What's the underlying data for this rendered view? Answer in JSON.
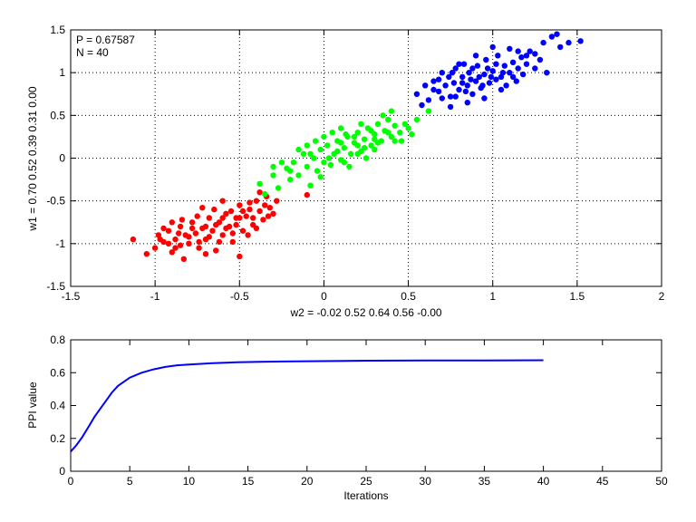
{
  "chart_data": [
    {
      "type": "scatter",
      "annotations": [
        "P = 0.67587",
        "N = 40"
      ],
      "xlabel": "w2 = -0.02  0.52  0.64  0.56  -0.00",
      "ylabel": "w1 = 0.70  0.52  0.39  0.31  0.00",
      "xlim": [
        -1.5,
        2
      ],
      "ylim": [
        -1.5,
        1.5
      ],
      "xticks": [
        -1.5,
        -1,
        -0.5,
        0,
        0.5,
        1,
        1.5,
        2
      ],
      "yticks": [
        -1.5,
        -1,
        -0.5,
        0,
        0.5,
        1,
        1.5
      ],
      "xtick_labels": [
        "-1.5",
        "-1",
        "-0.5",
        "0",
        "0.5",
        "1",
        "1.5",
        "2"
      ],
      "ytick_labels": [
        "-1.5",
        "-1",
        "-0.5",
        "0",
        "0.5",
        "1",
        "1.5"
      ],
      "grid": true,
      "series": [
        {
          "color": "#ff0000",
          "points": [
            [
              -1.13,
              -0.95
            ],
            [
              -1.05,
              -1.12
            ],
            [
              -1.0,
              -1.05
            ],
            [
              -0.98,
              -0.9
            ],
            [
              -0.95,
              -0.98
            ],
            [
              -0.92,
              -0.85
            ],
            [
              -0.9,
              -1.1
            ],
            [
              -0.88,
              -0.95
            ],
            [
              -0.85,
              -0.8
            ],
            [
              -0.83,
              -1.18
            ],
            [
              -0.82,
              -0.9
            ],
            [
              -0.8,
              -1.0
            ],
            [
              -0.78,
              -0.75
            ],
            [
              -0.76,
              -0.88
            ],
            [
              -0.74,
              -1.05
            ],
            [
              -0.72,
              -0.82
            ],
            [
              -0.7,
              -0.95
            ],
            [
              -0.68,
              -0.7
            ],
            [
              -0.66,
              -0.85
            ],
            [
              -0.64,
              -1.08
            ],
            [
              -0.62,
              -0.75
            ],
            [
              -0.6,
              -0.9
            ],
            [
              -0.58,
              -0.65
            ],
            [
              -0.56,
              -0.8
            ],
            [
              -0.54,
              -0.98
            ],
            [
              -0.52,
              -0.7
            ],
            [
              -0.5,
              -0.55
            ],
            [
              -0.48,
              -0.85
            ],
            [
              -0.46,
              -0.68
            ],
            [
              -0.44,
              -0.6
            ],
            [
              -0.42,
              -0.78
            ],
            [
              -0.4,
              -0.5
            ],
            [
              -0.38,
              -0.62
            ],
            [
              -0.36,
              -0.72
            ],
            [
              -0.34,
              -0.45
            ],
            [
              -0.32,
              -0.58
            ],
            [
              -0.3,
              -0.65
            ],
            [
              -0.28,
              -0.5
            ],
            [
              -0.6,
              -0.5
            ],
            [
              -0.55,
              -0.62
            ],
            [
              -0.75,
              -0.68
            ],
            [
              -0.85,
              -1.02
            ],
            [
              -0.95,
              -0.82
            ],
            [
              -0.7,
              -1.12
            ],
            [
              -0.5,
              -1.15
            ],
            [
              -0.45,
              -0.9
            ],
            [
              -0.65,
              -0.6
            ],
            [
              -0.8,
              -0.92
            ],
            [
              -0.9,
              -0.75
            ],
            [
              -0.72,
              -0.58
            ],
            [
              -0.62,
              -0.98
            ],
            [
              -0.58,
              -0.82
            ],
            [
              -0.42,
              -0.7
            ],
            [
              -0.35,
              -0.55
            ],
            [
              -0.88,
              -1.05
            ],
            [
              -0.78,
              -0.82
            ],
            [
              -0.68,
              -0.92
            ],
            [
              -0.52,
              -0.78
            ],
            [
              -0.48,
              -0.62
            ],
            [
              -0.38,
              -0.4
            ],
            [
              -0.1,
              -0.43
            ],
            [
              -0.97,
              -0.95
            ],
            [
              -0.84,
              -0.72
            ],
            [
              -0.74,
              -0.98
            ],
            [
              -0.64,
              -0.78
            ],
            [
              -0.54,
              -0.88
            ],
            [
              -0.44,
              -0.52
            ],
            [
              -0.4,
              -0.82
            ],
            [
              -0.33,
              -0.68
            ],
            [
              -0.92,
              -1.0
            ],
            [
              -0.86,
              -0.88
            ],
            [
              -0.7,
              -0.8
            ],
            [
              -0.6,
              -0.7
            ],
            [
              -0.5,
              -0.7
            ]
          ]
        },
        {
          "color": "#00ff00",
          "points": [
            [
              -0.38,
              -0.3
            ],
            [
              -0.35,
              -0.42
            ],
            [
              -0.3,
              -0.2
            ],
            [
              -0.27,
              -0.35
            ],
            [
              -0.22,
              -0.12
            ],
            [
              -0.2,
              -0.25
            ],
            [
              -0.18,
              -0.05
            ],
            [
              -0.15,
              -0.2
            ],
            [
              -0.12,
              0.05
            ],
            [
              -0.1,
              -0.1
            ],
            [
              -0.08,
              -0.32
            ],
            [
              -0.06,
              0.0
            ],
            [
              -0.04,
              -0.15
            ],
            [
              -0.02,
              0.1
            ],
            [
              0.0,
              -0.05
            ],
            [
              0.02,
              0.15
            ],
            [
              0.04,
              -0.08
            ],
            [
              0.06,
              0.05
            ],
            [
              0.08,
              0.2
            ],
            [
              0.1,
              -0.02
            ],
            [
              0.12,
              0.12
            ],
            [
              0.14,
              0.25
            ],
            [
              0.16,
              0.05
            ],
            [
              0.18,
              0.18
            ],
            [
              0.2,
              0.3
            ],
            [
              0.22,
              0.08
            ],
            [
              0.24,
              0.22
            ],
            [
              0.26,
              0.35
            ],
            [
              0.28,
              0.15
            ],
            [
              0.3,
              0.28
            ],
            [
              0.32,
              0.4
            ],
            [
              0.34,
              0.2
            ],
            [
              0.36,
              0.32
            ],
            [
              0.38,
              0.45
            ],
            [
              0.4,
              0.25
            ],
            [
              0.42,
              0.38
            ],
            [
              0.45,
              0.3
            ],
            [
              0.48,
              0.4
            ],
            [
              0.5,
              0.35
            ],
            [
              0.55,
              0.45
            ],
            [
              0.62,
              0.55
            ],
            [
              -0.05,
              0.2
            ],
            [
              0.05,
              0.3
            ],
            [
              0.15,
              -0.1
            ],
            [
              0.25,
              0.0
            ],
            [
              0.35,
              0.5
            ],
            [
              -0.15,
              0.1
            ],
            [
              -0.25,
              -0.05
            ],
            [
              0.1,
              0.35
            ],
            [
              0.2,
              0.05
            ],
            [
              0.3,
              0.1
            ],
            [
              0.0,
              0.25
            ],
            [
              -0.1,
              0.15
            ],
            [
              0.12,
              -0.05
            ],
            [
              0.22,
              0.4
            ],
            [
              0.32,
              0.18
            ],
            [
              0.42,
              0.2
            ],
            [
              -0.02,
              -0.22
            ],
            [
              0.08,
              0.08
            ],
            [
              0.18,
              0.25
            ],
            [
              0.28,
              0.32
            ],
            [
              0.38,
              0.3
            ],
            [
              0.46,
              0.2
            ],
            [
              0.52,
              0.28
            ],
            [
              -0.2,
              -0.15
            ],
            [
              -0.3,
              -0.1
            ],
            [
              0.4,
              0.55
            ],
            [
              0.1,
              0.18
            ],
            [
              0.2,
              0.15
            ],
            [
              0.3,
              0.22
            ],
            [
              -0.08,
              0.05
            ],
            [
              0.03,
              0.0
            ],
            [
              0.13,
              0.28
            ],
            [
              0.24,
              0.12
            ]
          ]
        },
        {
          "color": "#0000ff",
          "points": [
            [
              0.55,
              0.75
            ],
            [
              0.6,
              0.85
            ],
            [
              0.62,
              0.68
            ],
            [
              0.65,
              0.9
            ],
            [
              0.68,
              0.78
            ],
            [
              0.7,
              1.0
            ],
            [
              0.72,
              0.85
            ],
            [
              0.74,
              0.95
            ],
            [
              0.75,
              0.72
            ],
            [
              0.77,
              0.88
            ],
            [
              0.78,
              1.05
            ],
            [
              0.8,
              0.8
            ],
            [
              0.82,
              0.95
            ],
            [
              0.83,
              1.1
            ],
            [
              0.85,
              0.85
            ],
            [
              0.86,
              1.0
            ],
            [
              0.88,
              0.75
            ],
            [
              0.9,
              0.9
            ],
            [
              0.91,
              1.08
            ],
            [
              0.93,
              0.82
            ],
            [
              0.95,
              0.98
            ],
            [
              0.96,
              1.15
            ],
            [
              0.98,
              0.88
            ],
            [
              1.0,
              1.02
            ],
            [
              1.02,
              0.92
            ],
            [
              1.03,
              1.2
            ],
            [
              1.05,
              0.95
            ],
            [
              1.07,
              1.08
            ],
            [
              1.08,
              0.85
            ],
            [
              1.1,
              1.0
            ],
            [
              1.12,
              1.12
            ],
            [
              1.14,
              0.9
            ],
            [
              1.15,
              1.05
            ],
            [
              1.17,
              1.18
            ],
            [
              1.18,
              0.98
            ],
            [
              1.2,
              1.1
            ],
            [
              1.22,
              1.25
            ],
            [
              1.25,
              1.05
            ],
            [
              1.28,
              1.15
            ],
            [
              1.3,
              1.35
            ],
            [
              1.32,
              1.0
            ],
            [
              1.35,
              1.42
            ],
            [
              1.38,
              1.45
            ],
            [
              1.4,
              1.3
            ],
            [
              1.45,
              1.35
            ],
            [
              1.52,
              1.37
            ],
            [
              0.75,
              0.6
            ],
            [
              0.85,
              0.65
            ],
            [
              0.95,
              0.7
            ],
            [
              0.9,
              1.2
            ],
            [
              1.0,
              1.3
            ],
            [
              1.1,
              1.28
            ],
            [
              0.8,
              1.1
            ],
            [
              0.7,
              0.7
            ],
            [
              0.65,
              0.8
            ],
            [
              1.05,
              0.8
            ],
            [
              0.92,
              0.95
            ],
            [
              0.82,
              0.88
            ],
            [
              0.88,
              1.05
            ],
            [
              0.97,
              1.05
            ],
            [
              1.12,
              0.95
            ],
            [
              1.2,
              1.2
            ],
            [
              0.58,
              0.62
            ],
            [
              0.68,
              0.92
            ],
            [
              0.78,
              0.72
            ],
            [
              1.25,
              1.22
            ],
            [
              1.15,
              1.25
            ],
            [
              0.87,
              0.92
            ],
            [
              0.94,
              0.85
            ],
            [
              1.02,
              1.1
            ],
            [
              1.06,
              1.0
            ],
            [
              0.99,
              0.95
            ],
            [
              0.76,
              1.0
            ],
            [
              0.84,
              0.78
            ]
          ]
        }
      ]
    },
    {
      "type": "line",
      "xlabel": "Iterations",
      "ylabel": "PPI value",
      "xlim": [
        0,
        50
      ],
      "ylim": [
        0,
        0.8
      ],
      "xticks": [
        0,
        5,
        10,
        15,
        20,
        25,
        30,
        35,
        40,
        45,
        50
      ],
      "yticks": [
        0,
        0.2,
        0.4,
        0.6,
        0.8
      ],
      "xtick_labels": [
        "0",
        "5",
        "10",
        "15",
        "20",
        "25",
        "30",
        "35",
        "40",
        "45",
        "50"
      ],
      "ytick_labels": [
        "0",
        "0.2",
        "0.4",
        "0.6",
        "0.8"
      ],
      "grid": false,
      "series": [
        {
          "color": "#0000ff",
          "x": [
            0,
            0.5,
            1,
            1.5,
            2,
            2.5,
            3,
            3.5,
            4,
            5,
            6,
            7,
            8,
            9,
            10,
            12,
            14,
            16,
            18,
            20,
            25,
            30,
            35,
            40
          ],
          "y": [
            0.12,
            0.16,
            0.21,
            0.27,
            0.33,
            0.38,
            0.43,
            0.48,
            0.52,
            0.57,
            0.6,
            0.62,
            0.635,
            0.645,
            0.65,
            0.658,
            0.663,
            0.666,
            0.668,
            0.67,
            0.673,
            0.674,
            0.675,
            0.676
          ]
        }
      ]
    }
  ]
}
